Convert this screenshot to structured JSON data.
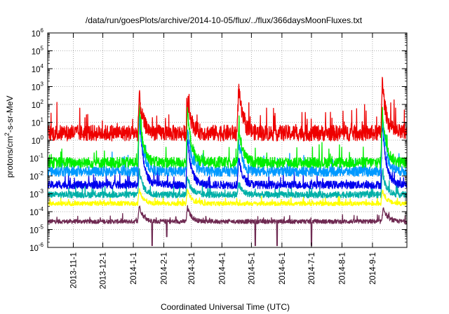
{
  "chart_data": {
    "type": "line",
    "title": "/data/run/goesPlots/archive/2014-10-05/flux/../flux/366daysMoonFluxes.txt",
    "xlabel": "Coordinated Universal Time (UTC)",
    "ylabel_base": "protons/cm",
    "ylabel_sup": "2",
    "ylabel_rest": "-s-sr-MeV",
    "y_scale": "log",
    "ylim_exp": [
      -6,
      6
    ],
    "y_tick_labels": [
      {
        "exp": -6,
        "base": "10",
        "sup": "-6"
      },
      {
        "exp": -5,
        "base": "10",
        "sup": "-5"
      },
      {
        "exp": -4,
        "base": "10",
        "sup": "-4"
      },
      {
        "exp": -3,
        "base": "10",
        "sup": "-3"
      },
      {
        "exp": -2,
        "base": "10",
        "sup": "-2"
      },
      {
        "exp": -1,
        "base": "10",
        "sup": "-1"
      },
      {
        "exp": 0,
        "base": "10",
        "sup": "0"
      },
      {
        "exp": 1,
        "base": "10",
        "sup": "1"
      },
      {
        "exp": 2,
        "base": "10",
        "sup": "2"
      },
      {
        "exp": 3,
        "base": "10",
        "sup": "3"
      },
      {
        "exp": 4,
        "base": "10",
        "sup": "4"
      },
      {
        "exp": 5,
        "base": "10",
        "sup": "5"
      },
      {
        "exp": 6,
        "base": "10",
        "sup": "6"
      }
    ],
    "x_range_dates": [
      "2013-10-06",
      "2014-10-06"
    ],
    "x_ticks": [
      "2013-11-1",
      "2013-12-1",
      "2014-1-1",
      "2014-2-1",
      "2014-3-1",
      "2014-4-1",
      "2014-5-1",
      "2014-6-1",
      "2014-7-1",
      "2014-8-1",
      "2014-9-1"
    ],
    "grid": true,
    "legend": "none",
    "series": [
      {
        "color": "#6f2a52",
        "baseline_exp": -4.55,
        "noise": 0.12,
        "events": [
          [
            "2014-01-07",
            0.9
          ],
          [
            "2014-02-25",
            0.8
          ],
          [
            "2014-09-12",
            0.8
          ]
        ],
        "dips": [
          [
            "2014-01-20",
            -5.9
          ],
          [
            "2014-02-04",
            -5.4
          ],
          [
            "2014-05-05",
            -5.9
          ],
          [
            "2014-05-27",
            -5.9
          ],
          [
            "2014-07-01",
            -5.9
          ]
        ]
      },
      {
        "color": "#ffff00",
        "baseline_exp": -3.55,
        "noise": 0.12,
        "events": [
          [
            "2014-01-07",
            0.8
          ],
          [
            "2014-02-25",
            0.8
          ],
          [
            "2014-09-11",
            0.8
          ]
        ]
      },
      {
        "color": "#00b0a8",
        "baseline_exp": -3.05,
        "noise": 0.18,
        "events": [
          [
            "2014-01-07",
            1.4
          ],
          [
            "2014-02-25",
            1.0
          ],
          [
            "2014-04-18",
            0.6
          ],
          [
            "2014-09-11",
            1.3
          ]
        ]
      },
      {
        "color": "#0000ee",
        "baseline_exp": -2.5,
        "noise": 0.22,
        "events": [
          [
            "2014-01-07",
            4.0
          ],
          [
            "2014-02-25",
            2.6
          ],
          [
            "2014-04-18",
            1.5
          ],
          [
            "2014-09-11",
            3.5
          ]
        ]
      },
      {
        "color": "#0099ff",
        "baseline_exp": -1.75,
        "noise": 0.28,
        "events": [
          [
            "2014-01-07",
            3.2
          ],
          [
            "2014-02-25",
            2.4
          ],
          [
            "2014-04-18",
            1.6
          ],
          [
            "2014-09-11",
            3.1
          ]
        ]
      },
      {
        "color": "#00ee00",
        "baseline_exp": -1.25,
        "noise": 0.3,
        "events": [
          [
            "2014-01-07",
            3.0
          ],
          [
            "2014-02-25",
            2.9
          ],
          [
            "2014-04-18",
            2.0
          ],
          [
            "2014-09-11",
            3.0
          ]
        ]
      },
      {
        "color": "#ee0000",
        "baseline_exp": 0.4,
        "noise": 0.45,
        "events": [
          [
            "2014-01-07",
            2.1
          ],
          [
            "2014-02-25",
            1.9
          ],
          [
            "2014-04-18",
            2.6
          ],
          [
            "2014-09-11",
            2.9
          ]
        ]
      }
    ]
  }
}
